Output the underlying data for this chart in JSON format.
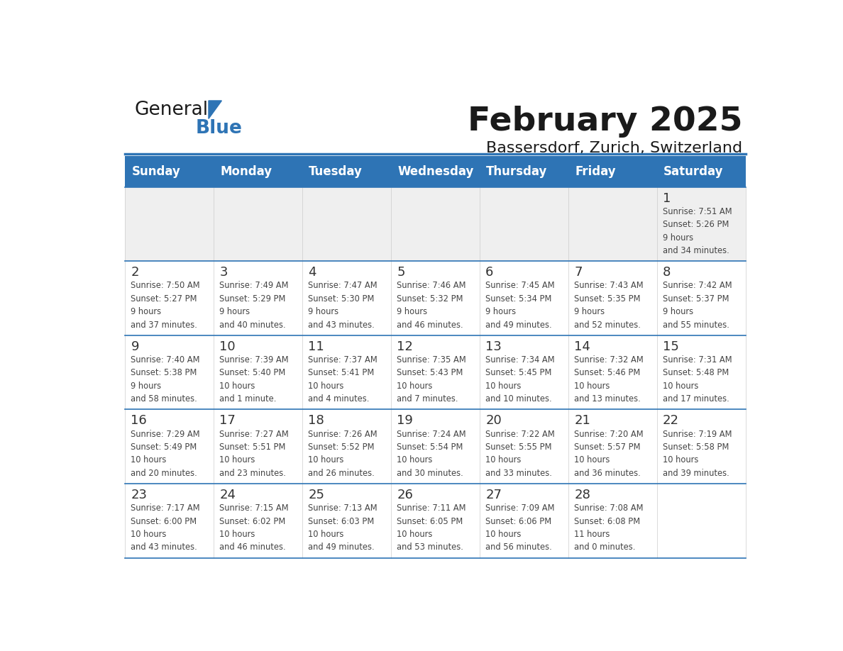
{
  "title": "February 2025",
  "subtitle": "Bassersdorf, Zurich, Switzerland",
  "days_of_week": [
    "Sunday",
    "Monday",
    "Tuesday",
    "Wednesday",
    "Thursday",
    "Friday",
    "Saturday"
  ],
  "header_bg": "#2E74B5",
  "header_text": "#FFFFFF",
  "separator_color": "#2E74B5",
  "day_number_color": "#333333",
  "cell_text_color": "#444444",
  "logo_general_color": "#1A1A1A",
  "logo_blue_color": "#2E74B5",
  "calendar_data": [
    [
      {
        "day": null,
        "sunrise": null,
        "sunset": null,
        "daylight": null
      },
      {
        "day": null,
        "sunrise": null,
        "sunset": null,
        "daylight": null
      },
      {
        "day": null,
        "sunrise": null,
        "sunset": null,
        "daylight": null
      },
      {
        "day": null,
        "sunrise": null,
        "sunset": null,
        "daylight": null
      },
      {
        "day": null,
        "sunrise": null,
        "sunset": null,
        "daylight": null
      },
      {
        "day": null,
        "sunrise": null,
        "sunset": null,
        "daylight": null
      },
      {
        "day": 1,
        "sunrise": "7:51 AM",
        "sunset": "5:26 PM",
        "daylight": "9 hours\nand 34 minutes."
      }
    ],
    [
      {
        "day": 2,
        "sunrise": "7:50 AM",
        "sunset": "5:27 PM",
        "daylight": "9 hours\nand 37 minutes."
      },
      {
        "day": 3,
        "sunrise": "7:49 AM",
        "sunset": "5:29 PM",
        "daylight": "9 hours\nand 40 minutes."
      },
      {
        "day": 4,
        "sunrise": "7:47 AM",
        "sunset": "5:30 PM",
        "daylight": "9 hours\nand 43 minutes."
      },
      {
        "day": 5,
        "sunrise": "7:46 AM",
        "sunset": "5:32 PM",
        "daylight": "9 hours\nand 46 minutes."
      },
      {
        "day": 6,
        "sunrise": "7:45 AM",
        "sunset": "5:34 PM",
        "daylight": "9 hours\nand 49 minutes."
      },
      {
        "day": 7,
        "sunrise": "7:43 AM",
        "sunset": "5:35 PM",
        "daylight": "9 hours\nand 52 minutes."
      },
      {
        "day": 8,
        "sunrise": "7:42 AM",
        "sunset": "5:37 PM",
        "daylight": "9 hours\nand 55 minutes."
      }
    ],
    [
      {
        "day": 9,
        "sunrise": "7:40 AM",
        "sunset": "5:38 PM",
        "daylight": "9 hours\nand 58 minutes."
      },
      {
        "day": 10,
        "sunrise": "7:39 AM",
        "sunset": "5:40 PM",
        "daylight": "10 hours\nand 1 minute."
      },
      {
        "day": 11,
        "sunrise": "7:37 AM",
        "sunset": "5:41 PM",
        "daylight": "10 hours\nand 4 minutes."
      },
      {
        "day": 12,
        "sunrise": "7:35 AM",
        "sunset": "5:43 PM",
        "daylight": "10 hours\nand 7 minutes."
      },
      {
        "day": 13,
        "sunrise": "7:34 AM",
        "sunset": "5:45 PM",
        "daylight": "10 hours\nand 10 minutes."
      },
      {
        "day": 14,
        "sunrise": "7:32 AM",
        "sunset": "5:46 PM",
        "daylight": "10 hours\nand 13 minutes."
      },
      {
        "day": 15,
        "sunrise": "7:31 AM",
        "sunset": "5:48 PM",
        "daylight": "10 hours\nand 17 minutes."
      }
    ],
    [
      {
        "day": 16,
        "sunrise": "7:29 AM",
        "sunset": "5:49 PM",
        "daylight": "10 hours\nand 20 minutes."
      },
      {
        "day": 17,
        "sunrise": "7:27 AM",
        "sunset": "5:51 PM",
        "daylight": "10 hours\nand 23 minutes."
      },
      {
        "day": 18,
        "sunrise": "7:26 AM",
        "sunset": "5:52 PM",
        "daylight": "10 hours\nand 26 minutes."
      },
      {
        "day": 19,
        "sunrise": "7:24 AM",
        "sunset": "5:54 PM",
        "daylight": "10 hours\nand 30 minutes."
      },
      {
        "day": 20,
        "sunrise": "7:22 AM",
        "sunset": "5:55 PM",
        "daylight": "10 hours\nand 33 minutes."
      },
      {
        "day": 21,
        "sunrise": "7:20 AM",
        "sunset": "5:57 PM",
        "daylight": "10 hours\nand 36 minutes."
      },
      {
        "day": 22,
        "sunrise": "7:19 AM",
        "sunset": "5:58 PM",
        "daylight": "10 hours\nand 39 minutes."
      }
    ],
    [
      {
        "day": 23,
        "sunrise": "7:17 AM",
        "sunset": "6:00 PM",
        "daylight": "10 hours\nand 43 minutes."
      },
      {
        "day": 24,
        "sunrise": "7:15 AM",
        "sunset": "6:02 PM",
        "daylight": "10 hours\nand 46 minutes."
      },
      {
        "day": 25,
        "sunrise": "7:13 AM",
        "sunset": "6:03 PM",
        "daylight": "10 hours\nand 49 minutes."
      },
      {
        "day": 26,
        "sunrise": "7:11 AM",
        "sunset": "6:05 PM",
        "daylight": "10 hours\nand 53 minutes."
      },
      {
        "day": 27,
        "sunrise": "7:09 AM",
        "sunset": "6:06 PM",
        "daylight": "10 hours\nand 56 minutes."
      },
      {
        "day": 28,
        "sunrise": "7:08 AM",
        "sunset": "6:08 PM",
        "daylight": "11 hours\nand 0 minutes."
      },
      {
        "day": null,
        "sunrise": null,
        "sunset": null,
        "daylight": null
      }
    ]
  ]
}
